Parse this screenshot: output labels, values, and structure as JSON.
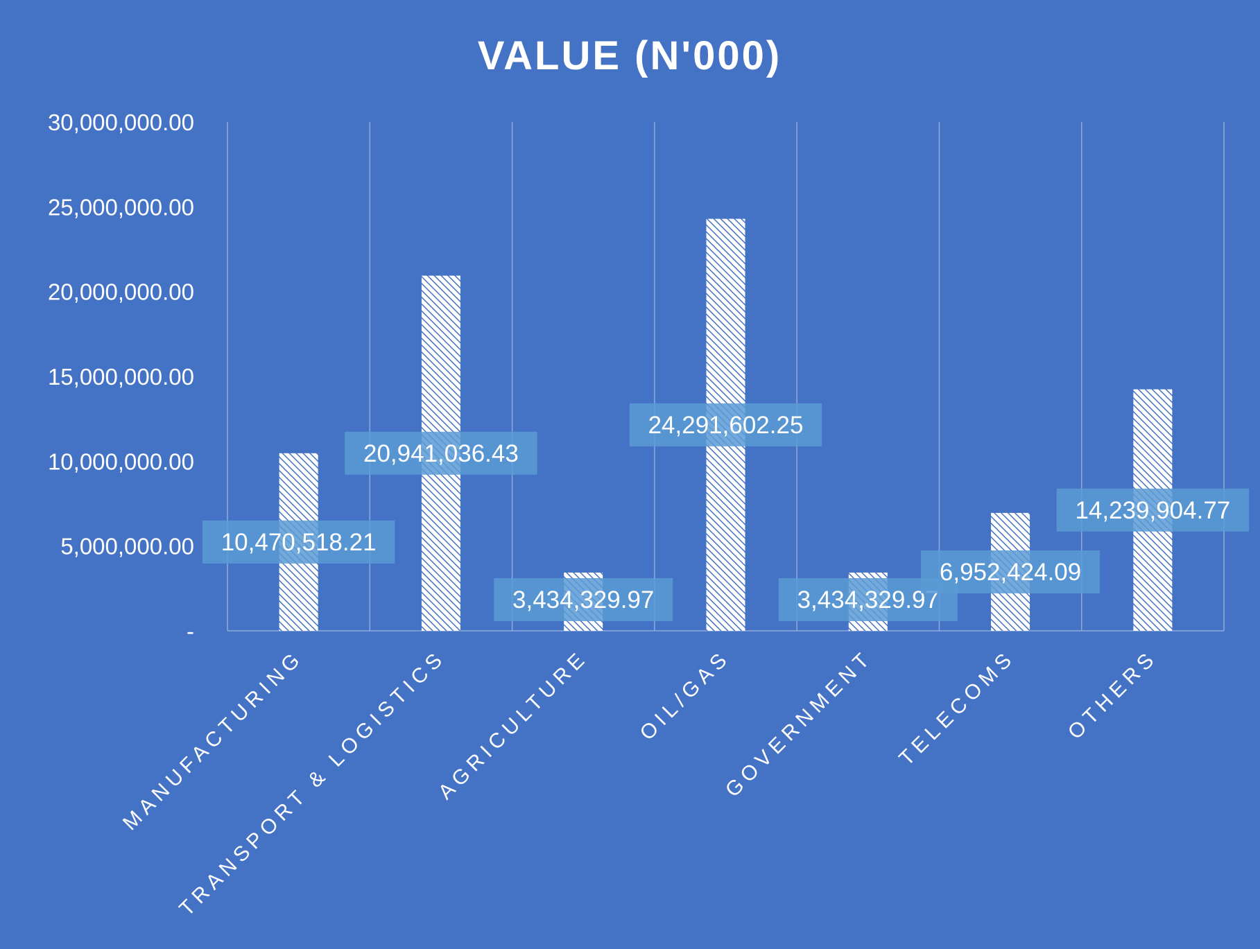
{
  "chart_data": {
    "type": "bar",
    "title": "VALUE (N'000)",
    "categories": [
      "MANUFACTURING",
      "TRANSPORT & LOGISTICS",
      "AGRICULTURE",
      "OIL/GAS",
      "GOVERNMENT",
      "TELECOMS",
      "OTHERS"
    ],
    "values": [
      10470518.21,
      20941036.43,
      3434329.97,
      24291602.25,
      3434329.97,
      6952424.09,
      14239904.77
    ],
    "data_labels": [
      "10,470,518.21",
      "20,941,036.43",
      "3,434,329.97",
      "24,291,602.25",
      "3,434,329.97",
      "6,952,424.09",
      "14,239,904.77"
    ],
    "yticks": [
      0,
      5000000,
      10000000,
      15000000,
      20000000,
      25000000,
      30000000
    ],
    "ytick_labels": [
      "-",
      "5,000,000.00",
      "10,000,000.00",
      "15,000,000.00",
      "20,000,000.00",
      "25,000,000.00",
      "30,000,000.00"
    ],
    "ylim": [
      0,
      30000000
    ],
    "xlabel": "",
    "ylabel": "",
    "grid": "vertical",
    "legend": "none",
    "colors": {
      "background": "#4472C4",
      "bar_fill": "#FFFFFF",
      "bar_hatch": "#4472C4",
      "label_box": "#5B9BD5",
      "grid": "#8FAADC",
      "text": "#FFFFFF"
    }
  }
}
